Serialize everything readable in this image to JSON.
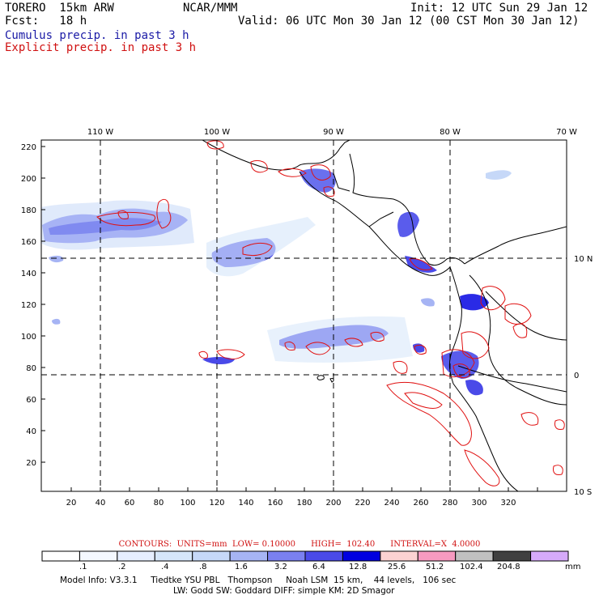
{
  "header": {
    "model": "TORERO  15km ARW",
    "org": "NCAR/MMM",
    "init": "Init: 12 UTC Sun 29 Jan 12",
    "fcst": "Fcst:   18 h",
    "valid": "Valid: 06 UTC Mon 30 Jan 12 (00 CST Mon 30 Jan 12)",
    "legend_cumulus": "Cumulus precip. in past 3 h",
    "legend_explicit": "Explicit precip. in past 3 h"
  },
  "map": {
    "top_lon_labels": [
      "110 W",
      "100 W",
      "90 W",
      "80 W",
      "70 W"
    ],
    "right_lat_labels": [
      "10 N",
      "0",
      "10 S"
    ],
    "x_ticks": [
      "20",
      "40",
      "60",
      "80",
      "100",
      "120",
      "140",
      "160",
      "180",
      "200",
      "220",
      "240",
      "260",
      "280",
      "300",
      "320"
    ],
    "y_ticks": [
      "20",
      "40",
      "60",
      "80",
      "100",
      "120",
      "140",
      "160",
      "180",
      "200",
      "220"
    ],
    "colors": {
      "cumulus": "#2a2ae6",
      "explicit": "#e01010",
      "coast": "#000000"
    }
  },
  "colorbar": {
    "contours_text": "CONTOURS:  UNITS=mm  LOW= 0.10000      HIGH=  102.40      INTERVAL=X  4.0000",
    "labels": [
      ".1",
      ".2",
      ".4",
      ".8",
      "1.6",
      "3.2",
      "6.4",
      "12.8",
      "25.6",
      "51.2",
      "102.4",
      "204.8",
      "mm"
    ],
    "colors": [
      "#ffffff",
      "#f4f8ff",
      "#e6eeff",
      "#d6e6fa",
      "#c6d8f8",
      "#a6b4f4",
      "#7a80f0",
      "#4a4ae8",
      "#0000e0",
      "#fcd2d2",
      "#f79ac0",
      "#c0c0c0",
      "#404040",
      "#d6aafa"
    ]
  },
  "footer": {
    "line1": "Model Info: V3.3.1     Tiedtke YSU PBL   Thompson     Noah LSM  15 km,    44 levels,   106 sec",
    "line2": "LW: Godd SW: Goddard DIFF: simple KM: 2D Smagor"
  }
}
